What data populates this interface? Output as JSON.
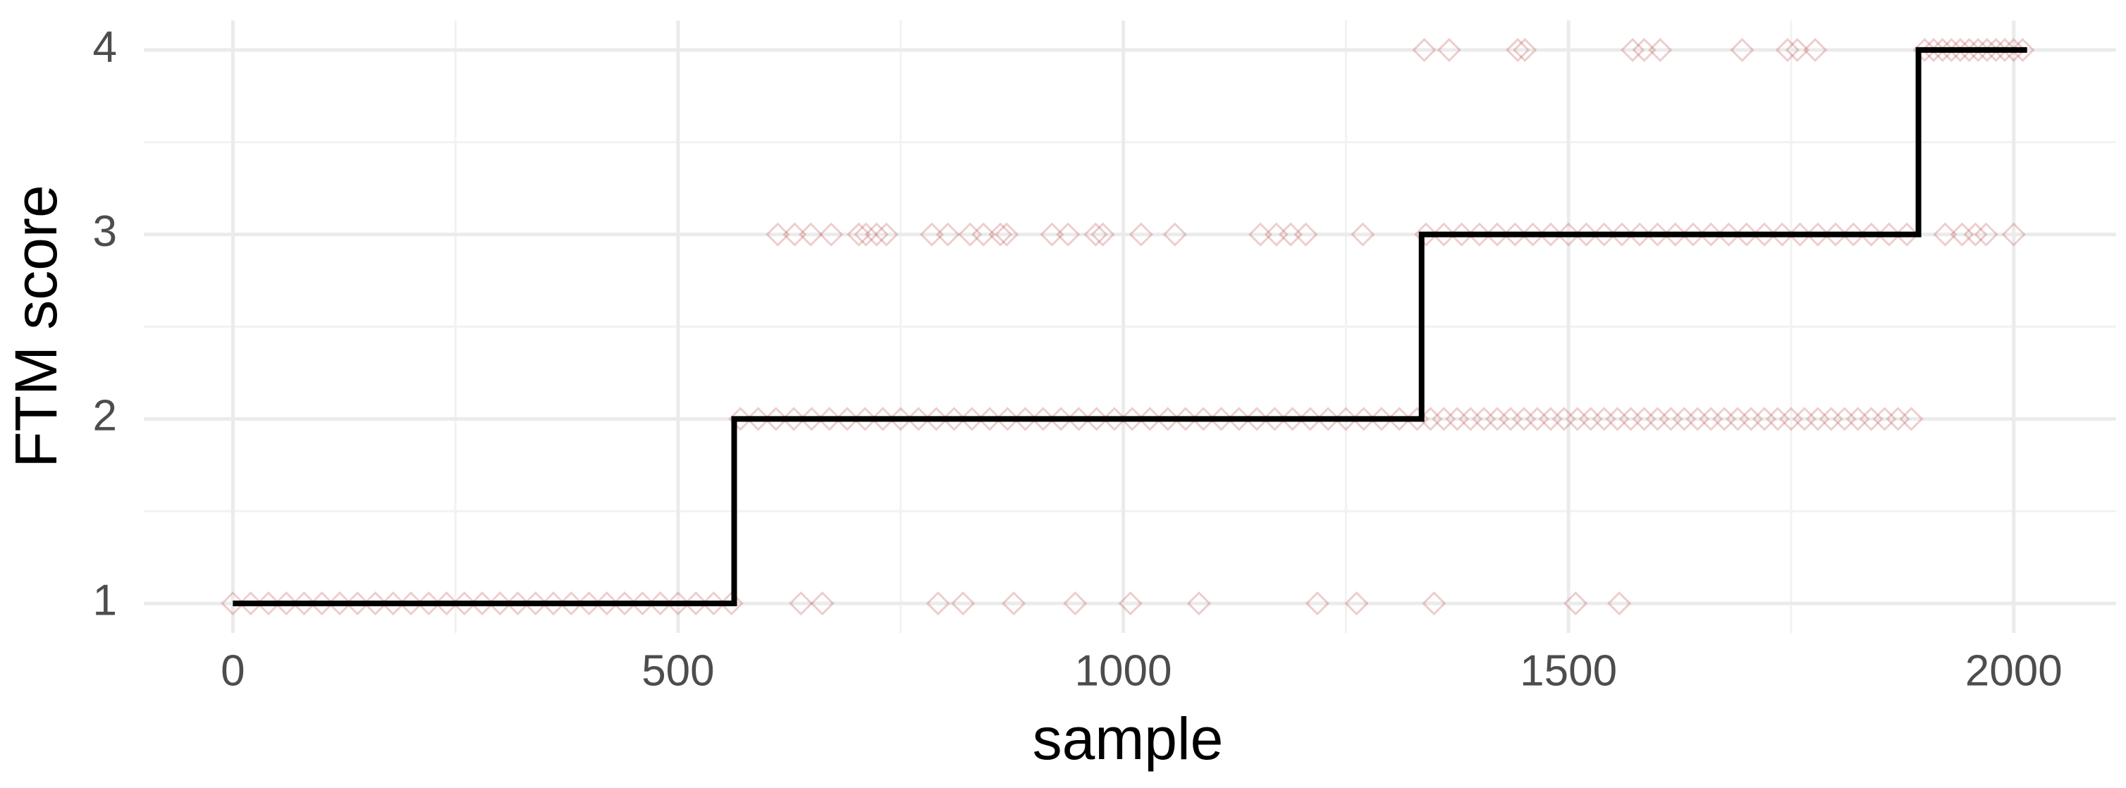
{
  "chart_data": {
    "type": "scatter",
    "xlabel": "sample",
    "ylabel": "FTM score",
    "color": "#c0504d",
    "grid": true,
    "xlim": [
      -100,
      2115
    ],
    "ylim": [
      0.84,
      4.16
    ],
    "xticks": [
      0,
      500,
      1000,
      1500,
      2000
    ],
    "yticks": [
      1,
      2,
      3,
      4
    ],
    "x_minor_grid": [
      250,
      750,
      1250,
      1750
    ],
    "y_minor_grid": [
      1.5,
      2.5,
      3.5
    ],
    "x": [
      0,
      20,
      40,
      60,
      80,
      100,
      120,
      140,
      160,
      180,
      200,
      220,
      240,
      260,
      280,
      300,
      320,
      340,
      360,
      380,
      400,
      420,
      440,
      460,
      480,
      500,
      520,
      540,
      560,
      638,
      662,
      792,
      820,
      877,
      946,
      1008,
      1085,
      1218,
      1262,
      1349,
      1508,
      1557,
      570,
      590,
      610,
      630,
      650,
      670,
      690,
      710,
      730,
      750,
      770,
      790,
      810,
      830,
      850,
      870,
      890,
      910,
      930,
      950,
      970,
      990,
      1010,
      1030,
      1050,
      1070,
      1090,
      1110,
      1130,
      1150,
      1170,
      1190,
      1210,
      1230,
      1250,
      1270,
      1290,
      1310,
      1330,
      1345,
      1360,
      1375,
      1390,
      1405,
      1420,
      1435,
      1450,
      1465,
      1480,
      1495,
      1510,
      1525,
      1540,
      1555,
      1570,
      1585,
      1600,
      1615,
      1630,
      1645,
      1660,
      1675,
      1690,
      1705,
      1720,
      1735,
      1750,
      1765,
      1780,
      1795,
      1810,
      1825,
      1840,
      1855,
      1870,
      1885,
      612,
      631,
      649,
      672,
      703,
      711,
      723,
      734,
      785,
      803,
      828,
      843,
      862,
      869,
      920,
      938,
      969,
      977,
      1020,
      1058,
      1154,
      1172,
      1188,
      1205,
      1269,
      1340,
      1360,
      1380,
      1400,
      1420,
      1440,
      1460,
      1480,
      1500,
      1520,
      1540,
      1560,
      1580,
      1600,
      1620,
      1640,
      1660,
      1680,
      1700,
      1720,
      1740,
      1760,
      1780,
      1800,
      1820,
      1840,
      1860,
      1880,
      1923,
      1942,
      1957,
      1969,
      2000,
      1338,
      1366,
      1443,
      1451,
      1572,
      1585,
      1603,
      1695,
      1746,
      1757,
      1777,
      1900,
      1910,
      1920,
      1930,
      1940,
      1950,
      1960,
      1970,
      1980,
      1990,
      2000,
      2010
    ],
    "values": [
      1,
      1,
      1,
      1,
      1,
      1,
      1,
      1,
      1,
      1,
      1,
      1,
      1,
      1,
      1,
      1,
      1,
      1,
      1,
      1,
      1,
      1,
      1,
      1,
      1,
      1,
      1,
      1,
      1,
      1,
      1,
      1,
      1,
      1,
      1,
      1,
      1,
      1,
      1,
      1,
      1,
      1,
      2,
      2,
      2,
      2,
      2,
      2,
      2,
      2,
      2,
      2,
      2,
      2,
      2,
      2,
      2,
      2,
      2,
      2,
      2,
      2,
      2,
      2,
      2,
      2,
      2,
      2,
      2,
      2,
      2,
      2,
      2,
      2,
      2,
      2,
      2,
      2,
      2,
      2,
      2,
      2,
      2,
      2,
      2,
      2,
      2,
      2,
      2,
      2,
      2,
      2,
      2,
      2,
      2,
      2,
      2,
      2,
      2,
      2,
      2,
      2,
      2,
      2,
      2,
      2,
      2,
      2,
      2,
      2,
      2,
      2,
      2,
      2,
      2,
      2,
      2,
      2,
      3,
      3,
      3,
      3,
      3,
      3,
      3,
      3,
      3,
      3,
      3,
      3,
      3,
      3,
      3,
      3,
      3,
      3,
      3,
      3,
      3,
      3,
      3,
      3,
      3,
      3,
      3,
      3,
      3,
      3,
      3,
      3,
      3,
      3,
      3,
      3,
      3,
      3,
      3,
      3,
      3,
      3,
      3,
      3,
      3,
      3,
      3,
      3,
      3,
      3,
      3,
      3,
      3,
      3,
      3,
      3,
      3,
      3,
      4,
      4,
      4,
      4,
      4,
      4,
      4,
      4,
      4,
      4,
      4,
      4,
      4,
      4,
      4,
      4,
      4,
      4,
      4,
      4,
      4,
      4,
      4
    ],
    "step_line": {
      "color": "#000000",
      "x": [
        0,
        563,
        563,
        1335,
        1335,
        1893,
        1893,
        2015
      ],
      "values": [
        1,
        1,
        2,
        2,
        3,
        3,
        4,
        4
      ]
    }
  }
}
